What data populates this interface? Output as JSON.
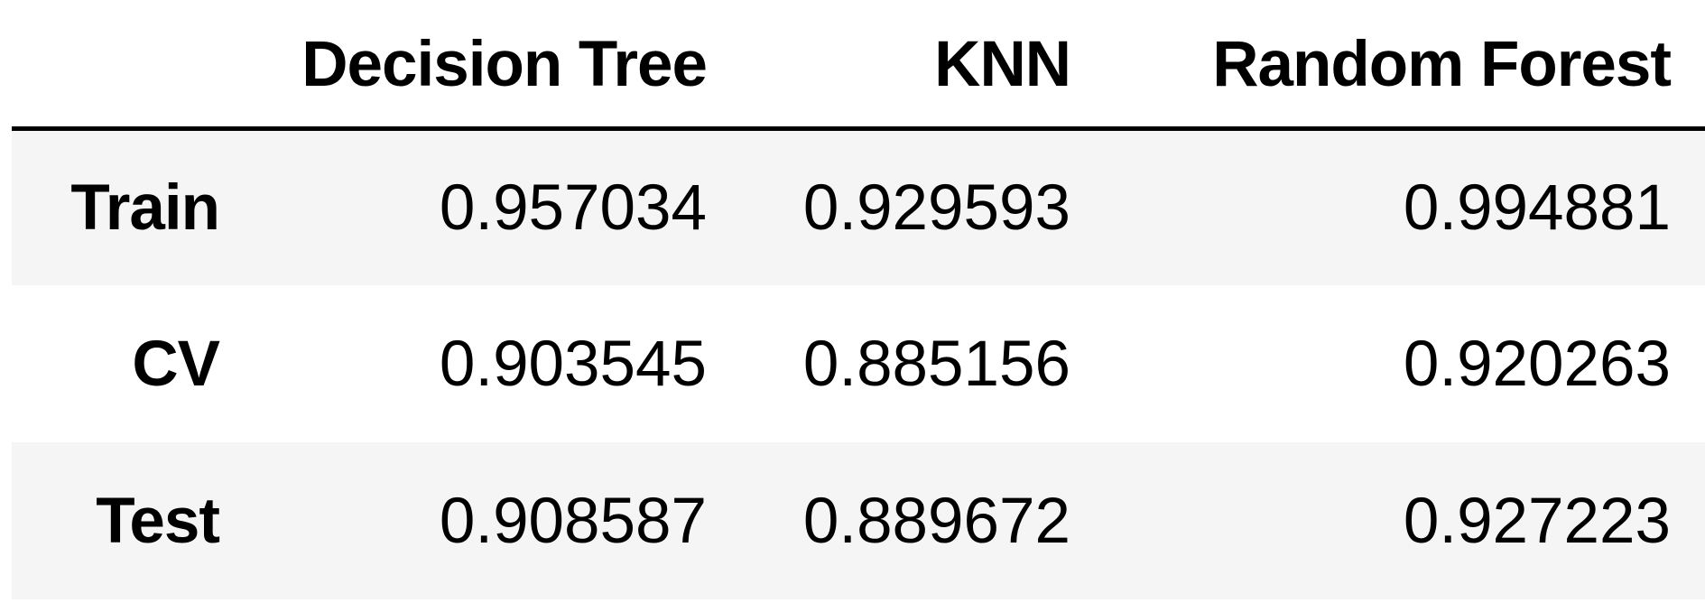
{
  "chart_data": {
    "type": "table",
    "columns": [
      "",
      "Decision Tree",
      "KNN",
      "Random Forest"
    ],
    "rows": [
      {
        "label": "Train",
        "values": [
          "0.957034",
          "0.929593",
          "0.994881"
        ]
      },
      {
        "label": "CV",
        "values": [
          "0.903545",
          "0.885156",
          "0.920263"
        ]
      },
      {
        "label": "Test",
        "values": [
          "0.908587",
          "0.889672",
          "0.927223"
        ]
      }
    ]
  }
}
